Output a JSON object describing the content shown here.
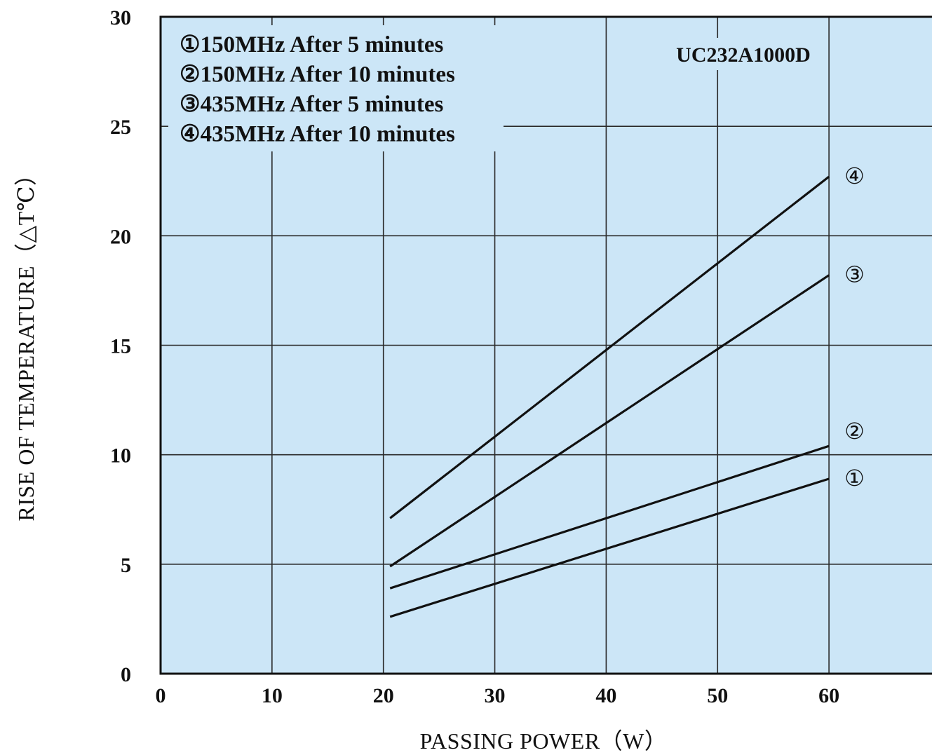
{
  "chart_data": {
    "type": "line",
    "title": "",
    "annotation": "UC232A1000D",
    "xlabel": "PASSING POWER（W）",
    "ylabel": "RISE OF TEMPERATURE（△T℃）",
    "xlim": [
      0,
      70
    ],
    "ylim": [
      0,
      30
    ],
    "xticks": [
      "0",
      "10",
      "20",
      "30",
      "40",
      "50",
      "60"
    ],
    "yticks": [
      "0",
      "5",
      "10",
      "15",
      "20",
      "25",
      "30"
    ],
    "grid": true,
    "legend_position": "top-left",
    "background_color": "#cce6f7",
    "line_color": "#111111",
    "legend": [
      "①150MHz After 5 minutes",
      "②150MHz After 10 minutes",
      "③435MHz After 5 minutes",
      "④435MHz After 10 minutes"
    ],
    "series": [
      {
        "marker": "①",
        "x": [
          20.6,
          60
        ],
        "y": [
          2.6,
          8.9
        ]
      },
      {
        "marker": "②",
        "x": [
          20.6,
          60
        ],
        "y": [
          3.9,
          10.4
        ]
      },
      {
        "marker": "③",
        "x": [
          20.6,
          60
        ],
        "y": [
          4.9,
          18.2
        ]
      },
      {
        "marker": "④",
        "x": [
          20.6,
          60
        ],
        "y": [
          7.1,
          22.7
        ]
      }
    ]
  }
}
